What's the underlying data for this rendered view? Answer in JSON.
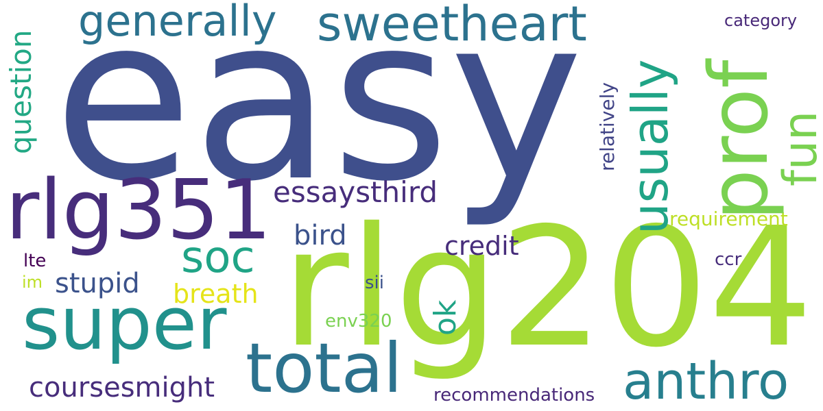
{
  "words": {
    "easy": {
      "text": "easy",
      "color": "#3f4f8c"
    },
    "rlg204": {
      "text": "rlg204",
      "color": "#a5db36"
    },
    "rlg351": {
      "text": "rlg351",
      "color": "#472d7b"
    },
    "super": {
      "text": "super",
      "color": "#21918c"
    },
    "total": {
      "text": "total",
      "color": "#2c728e"
    },
    "anthro": {
      "text": "anthro",
      "color": "#277f8e"
    },
    "sweetheart": {
      "text": "sweetheart",
      "color": "#2c728e"
    },
    "generally": {
      "text": "generally",
      "color": "#2c728e"
    },
    "prof": {
      "text": "prof",
      "color": "#7ad151"
    },
    "usually": {
      "text": "usually",
      "color": "#20a486"
    },
    "fun": {
      "text": "fun",
      "color": "#7ad151"
    },
    "soc": {
      "text": "soc",
      "color": "#20a486"
    },
    "essaysthird": {
      "text": "essaysthird",
      "color": "#472d7b"
    },
    "coursesmight": {
      "text": "coursesmight",
      "color": "#472d7b"
    },
    "question": {
      "text": "question",
      "color": "#22a884"
    },
    "bird": {
      "text": "bird",
      "color": "#3b528b"
    },
    "credit": {
      "text": "credit",
      "color": "#472d7b"
    },
    "stupid": {
      "text": "stupid",
      "color": "#3b528b"
    },
    "breath": {
      "text": "breath",
      "color": "#e5e419"
    },
    "ok": {
      "text": "ok",
      "color": "#20a486"
    },
    "requirement": {
      "text": "requirement",
      "color": "#bddf26"
    },
    "relatively": {
      "text": "relatively",
      "color": "#414487"
    },
    "category": {
      "text": "category",
      "color": "#482878"
    },
    "recommendations": {
      "text": "recommendations",
      "color": "#482878"
    },
    "env320": {
      "text": "env320",
      "color": "#7ad151"
    },
    "ccr": {
      "text": "ccr",
      "color": "#472d7b"
    },
    "sii": {
      "text": "sii",
      "color": "#3b528b"
    },
    "lte": {
      "text": "lte",
      "color": "#440154"
    },
    "im": {
      "text": "im",
      "color": "#bddf26"
    }
  }
}
